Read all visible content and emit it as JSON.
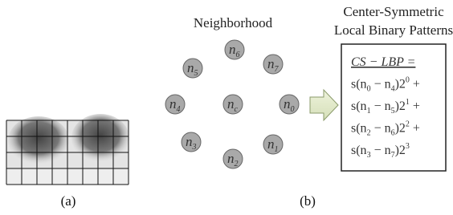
{
  "neighborhood_title": "Neighborhood",
  "pattern_title": [
    "Center-Symmetric",
    "Local Binary Patterns"
  ],
  "nodes": [
    {
      "base": "n",
      "sub": "0"
    },
    {
      "base": "n",
      "sub": "1"
    },
    {
      "base": "n",
      "sub": "2"
    },
    {
      "base": "n",
      "sub": "3"
    },
    {
      "base": "n",
      "sub": "4"
    },
    {
      "base": "n",
      "sub": "5"
    },
    {
      "base": "n",
      "sub": "6"
    },
    {
      "base": "n",
      "sub": "7"
    },
    {
      "base": "n",
      "sub": "c"
    }
  ],
  "formula": [
    [
      {
        "text": "CS − LBP ="
      }
    ],
    [
      {
        "text": "s(n"
      },
      {
        "sub": "0"
      },
      {
        "text": " − n"
      },
      {
        "sub": "4"
      },
      {
        "text": ")2"
      },
      {
        "sup": "0"
      },
      {
        "text": " +"
      }
    ],
    [
      {
        "text": "s(n"
      },
      {
        "sub": "1"
      },
      {
        "text": " − n"
      },
      {
        "sub": "5"
      },
      {
        "text": ")2"
      },
      {
        "sup": "1"
      },
      {
        "text": " +"
      }
    ],
    [
      {
        "text": "s(n"
      },
      {
        "sub": "2"
      },
      {
        "text": " − n"
      },
      {
        "sub": "6"
      },
      {
        "text": ")2"
      },
      {
        "sup": "2"
      },
      {
        "text": " +"
      }
    ],
    [
      {
        "text": "s(n"
      },
      {
        "sub": "3"
      },
      {
        "text": " − n"
      },
      {
        "sub": "7"
      },
      {
        "text": ")2"
      },
      {
        "sup": "3"
      }
    ]
  ],
  "captions": [
    "(a)",
    "(b)"
  ]
}
